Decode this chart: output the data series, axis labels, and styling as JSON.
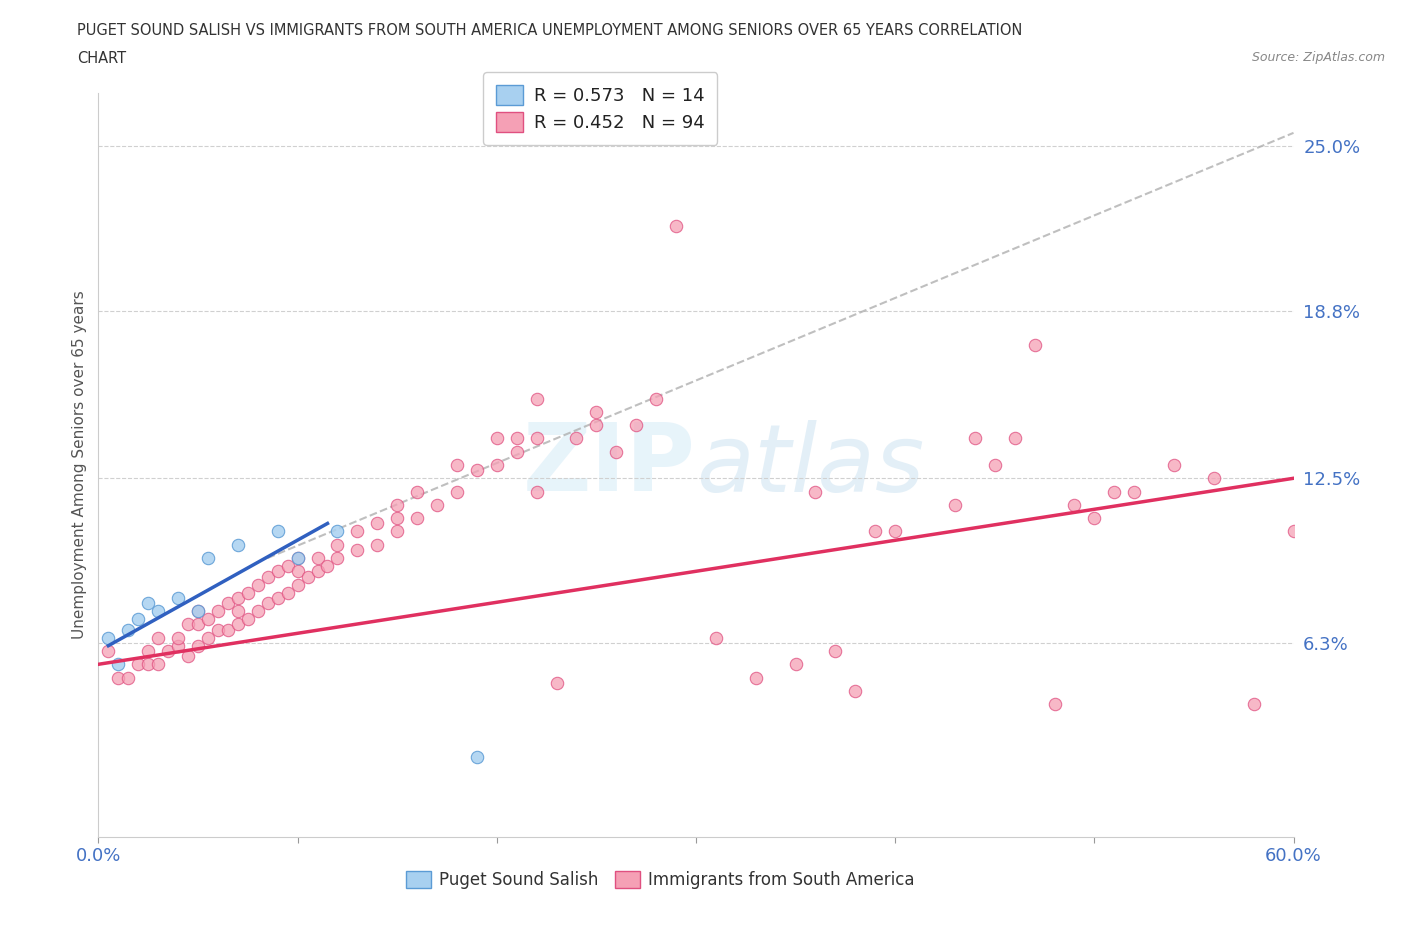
{
  "title_line1": "PUGET SOUND SALISH VS IMMIGRANTS FROM SOUTH AMERICA UNEMPLOYMENT AMONG SENIORS OVER 65 YEARS CORRELATION",
  "title_line2": "CHART",
  "source_text": "Source: ZipAtlas.com",
  "ylabel": "Unemployment Among Seniors over 65 years",
  "xlim": [
    0.0,
    0.6
  ],
  "ylim": [
    -0.01,
    0.27
  ],
  "ytick_vals": [
    0.0,
    0.063,
    0.125,
    0.188,
    0.25
  ],
  "ytick_labels": [
    "",
    "6.3%",
    "12.5%",
    "18.8%",
    "25.0%"
  ],
  "xtick_vals": [
    0.0,
    0.1,
    0.2,
    0.3,
    0.4,
    0.5,
    0.6
  ],
  "xtick_labels": [
    "0.0%",
    "",
    "",
    "",
    "",
    "",
    "60.0%"
  ],
  "legend_r1": "R = 0.573",
  "legend_n1": "N = 14",
  "legend_r2": "R = 0.452",
  "legend_n2": "N = 94",
  "color_blue_fill": "#a8d0f0",
  "color_blue_edge": "#5b9bd5",
  "color_pink_fill": "#f5a0b5",
  "color_pink_edge": "#e05080",
  "color_blue_line": "#3060c0",
  "color_pink_line": "#e03060",
  "color_dashed": "#b0b0b0",
  "color_grid": "#d0d0d0",
  "color_tick_label": "#4472c4",
  "color_ylabel": "#555555",
  "color_title": "#333333",
  "color_source": "#888888",
  "watermark_color": "#d8edf8",
  "puget_x": [
    0.005,
    0.01,
    0.015,
    0.02,
    0.025,
    0.03,
    0.04,
    0.05,
    0.055,
    0.07,
    0.09,
    0.1,
    0.12,
    0.19
  ],
  "puget_y": [
    0.065,
    0.055,
    0.068,
    0.072,
    0.078,
    0.075,
    0.08,
    0.075,
    0.095,
    0.1,
    0.105,
    0.095,
    0.105,
    0.02
  ],
  "blue_line_x": [
    0.005,
    0.115
  ],
  "blue_line_y": [
    0.062,
    0.108
  ],
  "pink_line_x": [
    0.0,
    0.6
  ],
  "pink_line_y": [
    0.055,
    0.125
  ],
  "dash_line_x": [
    0.085,
    0.6
  ],
  "dash_line_y": [
    0.095,
    0.255
  ],
  "imm_x": [
    0.005,
    0.01,
    0.015,
    0.02,
    0.025,
    0.025,
    0.03,
    0.03,
    0.035,
    0.04,
    0.04,
    0.045,
    0.045,
    0.05,
    0.05,
    0.05,
    0.055,
    0.055,
    0.06,
    0.06,
    0.065,
    0.065,
    0.07,
    0.07,
    0.07,
    0.075,
    0.075,
    0.08,
    0.08,
    0.085,
    0.085,
    0.09,
    0.09,
    0.095,
    0.095,
    0.1,
    0.1,
    0.1,
    0.105,
    0.11,
    0.11,
    0.115,
    0.12,
    0.12,
    0.13,
    0.13,
    0.14,
    0.14,
    0.15,
    0.15,
    0.15,
    0.16,
    0.16,
    0.17,
    0.18,
    0.18,
    0.19,
    0.2,
    0.2,
    0.21,
    0.21,
    0.22,
    0.22,
    0.22,
    0.23,
    0.24,
    0.25,
    0.25,
    0.26,
    0.27,
    0.28,
    0.29,
    0.31,
    0.33,
    0.35,
    0.36,
    0.37,
    0.38,
    0.39,
    0.4,
    0.43,
    0.44,
    0.45,
    0.46,
    0.47,
    0.48,
    0.49,
    0.5,
    0.51,
    0.52,
    0.54,
    0.56,
    0.58,
    0.6
  ],
  "imm_y": [
    0.06,
    0.05,
    0.05,
    0.055,
    0.055,
    0.06,
    0.055,
    0.065,
    0.06,
    0.062,
    0.065,
    0.058,
    0.07,
    0.062,
    0.07,
    0.075,
    0.065,
    0.072,
    0.068,
    0.075,
    0.068,
    0.078,
    0.07,
    0.075,
    0.08,
    0.072,
    0.082,
    0.075,
    0.085,
    0.078,
    0.088,
    0.08,
    0.09,
    0.082,
    0.092,
    0.085,
    0.09,
    0.095,
    0.088,
    0.09,
    0.095,
    0.092,
    0.095,
    0.1,
    0.098,
    0.105,
    0.1,
    0.108,
    0.105,
    0.11,
    0.115,
    0.11,
    0.12,
    0.115,
    0.12,
    0.13,
    0.128,
    0.13,
    0.14,
    0.135,
    0.14,
    0.14,
    0.12,
    0.155,
    0.048,
    0.14,
    0.145,
    0.15,
    0.135,
    0.145,
    0.155,
    0.22,
    0.065,
    0.05,
    0.055,
    0.12,
    0.06,
    0.045,
    0.105,
    0.105,
    0.115,
    0.14,
    0.13,
    0.14,
    0.175,
    0.04,
    0.115,
    0.11,
    0.12,
    0.12,
    0.13,
    0.125,
    0.04,
    0.105
  ]
}
